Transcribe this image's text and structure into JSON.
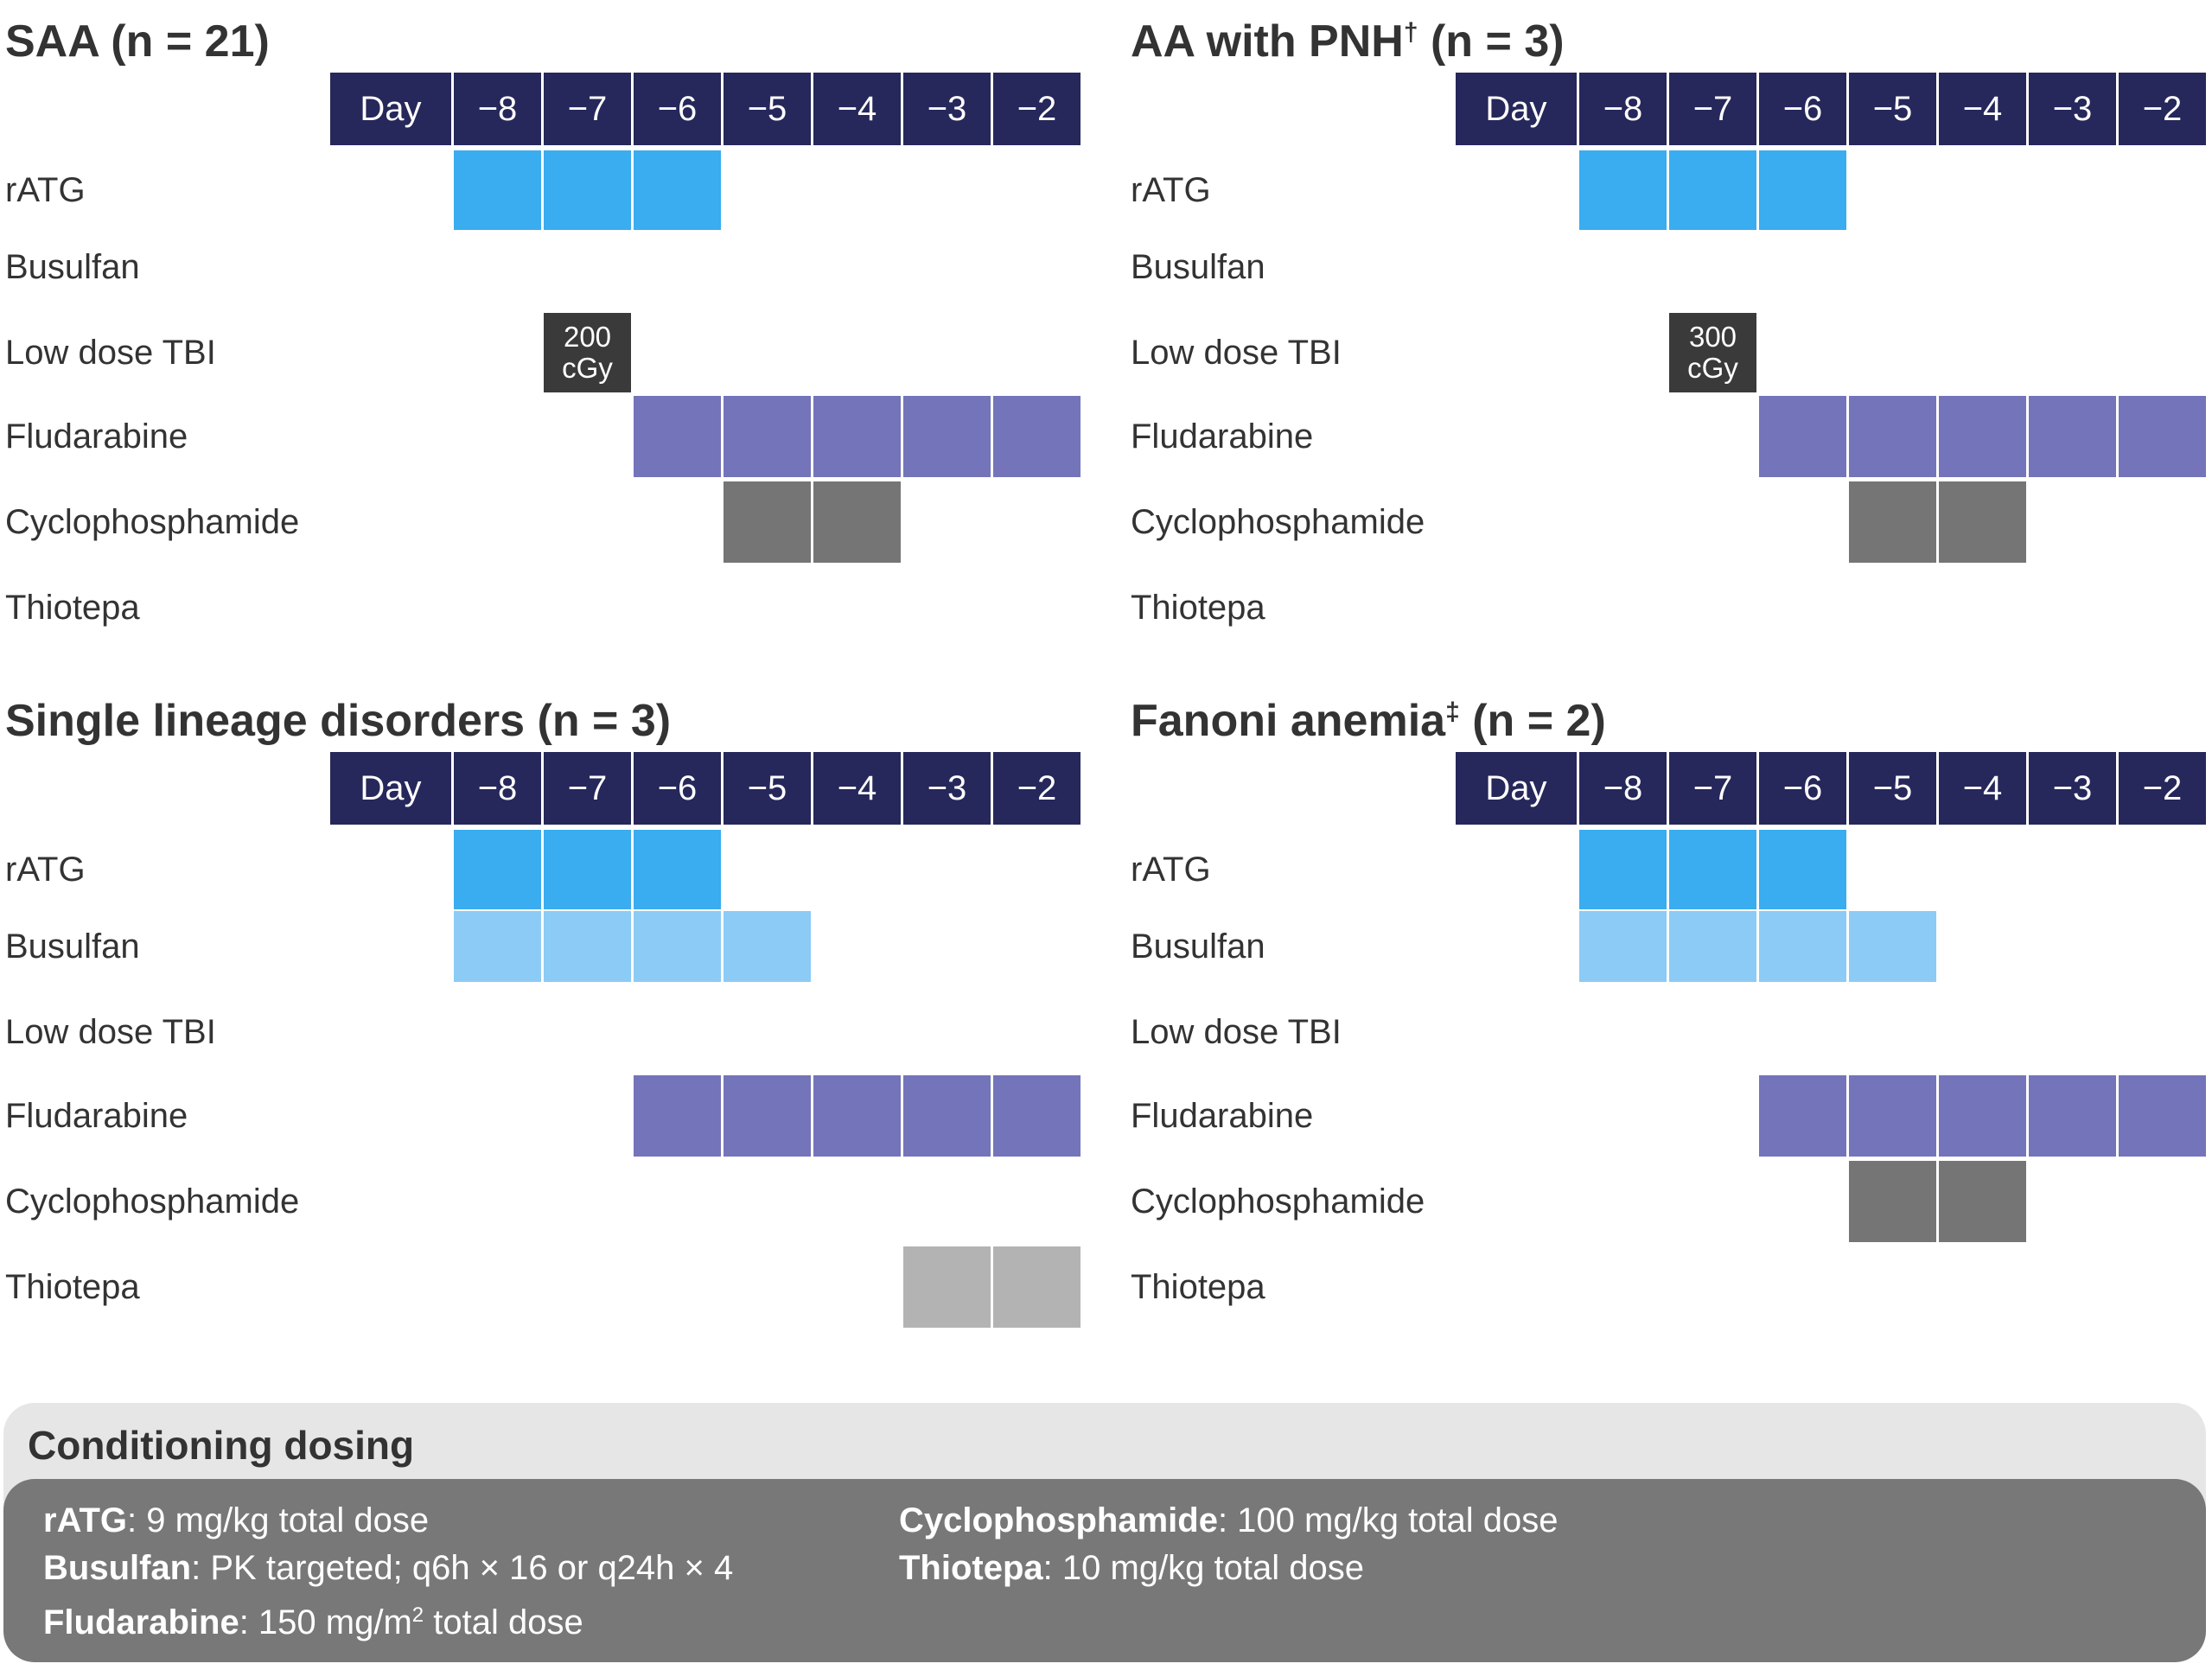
{
  "colors": {
    "header": "#26275a",
    "rATG": "#3aacf0",
    "Busulfan": "#8ccbf5",
    "Low dose TBI": "#3a3a3a",
    "Fludarabine": "#7474bb",
    "Cyclophosphamide": "#757575",
    "Thiotepa": "#b3b3b3"
  },
  "day_label": "Day",
  "days": [
    "−8",
    "−7",
    "−6",
    "−5",
    "−4",
    "−3",
    "−2"
  ],
  "panels": [
    {
      "title": "SAA (n = 21)",
      "title_sup": "",
      "title_suffix": "",
      "rows": [
        {
          "label": "rATG",
          "days": [
            "−8",
            "−7",
            "−6"
          ],
          "text": ""
        },
        {
          "label": "Busulfan",
          "days": [],
          "text": ""
        },
        {
          "label": "Low dose TBI",
          "days": [
            "−7"
          ],
          "text": "200 cGy"
        },
        {
          "label": "Fludarabine",
          "days": [
            "−6",
            "−5",
            "−4",
            "−3",
            "−2"
          ],
          "text": ""
        },
        {
          "label": "Cyclophosphamide",
          "days": [
            "−5",
            "−4"
          ],
          "text": ""
        },
        {
          "label": "Thiotepa",
          "days": [],
          "text": ""
        }
      ]
    },
    {
      "title": "AA with PNH",
      "title_sup": "†",
      "title_suffix": " (n = 3)",
      "rows": [
        {
          "label": "rATG",
          "days": [
            "−8",
            "−7",
            "−6"
          ],
          "text": ""
        },
        {
          "label": "Busulfan",
          "days": [],
          "text": ""
        },
        {
          "label": "Low dose TBI",
          "days": [
            "−7"
          ],
          "text": "300 cGy"
        },
        {
          "label": "Fludarabine",
          "days": [
            "−6",
            "−5",
            "−4",
            "−3",
            "−2"
          ],
          "text": ""
        },
        {
          "label": "Cyclophosphamide",
          "days": [
            "−5",
            "−4"
          ],
          "text": ""
        },
        {
          "label": "Thiotepa",
          "days": [],
          "text": ""
        }
      ]
    },
    {
      "title": "Single lineage disorders (n = 3)",
      "title_sup": "",
      "title_suffix": "",
      "rows": [
        {
          "label": "rATG",
          "days": [
            "−8",
            "−7",
            "−6"
          ],
          "text": ""
        },
        {
          "label": "Busulfan",
          "days": [
            "−8",
            "−7",
            "−6",
            "−5"
          ],
          "text": ""
        },
        {
          "label": "Low dose TBI",
          "days": [],
          "text": ""
        },
        {
          "label": "Fludarabine",
          "days": [
            "−6",
            "−5",
            "−4",
            "−3",
            "−2"
          ],
          "text": ""
        },
        {
          "label": "Cyclophosphamide",
          "days": [],
          "text": ""
        },
        {
          "label": "Thiotepa",
          "days": [
            "−3",
            "−2"
          ],
          "text": ""
        }
      ]
    },
    {
      "title": "Fanoni anemia",
      "title_sup": "‡",
      "title_suffix": " (n = 2)",
      "rows": [
        {
          "label": "rATG",
          "days": [
            "−8",
            "−7",
            "−6"
          ],
          "text": ""
        },
        {
          "label": "Busulfan",
          "days": [
            "−8",
            "−7",
            "−6",
            "−5"
          ],
          "text": ""
        },
        {
          "label": "Low dose TBI",
          "days": [],
          "text": ""
        },
        {
          "label": "Fludarabine",
          "days": [
            "−6",
            "−5",
            "−4",
            "−3",
            "−2"
          ],
          "text": ""
        },
        {
          "label": "Cyclophosphamide",
          "days": [
            "−5",
            "−4"
          ],
          "text": ""
        },
        {
          "label": "Thiotepa",
          "days": [],
          "text": ""
        }
      ]
    }
  ],
  "dosing": {
    "title": "Conditioning dosing",
    "ratg_name": "rATG",
    "ratg_text": ": 9 mg/kg total dose",
    "busulfan_name": "Busulfan",
    "busulfan_text": ": PK targeted; q6h × 16 or q24h × 4",
    "fludarabine_name": "Fludarabine",
    "fludarabine_text": ": 150 mg/m",
    "fludarabine_sup": "2",
    "fludarabine_text2": " total dose",
    "cyclophosphamide_name": "Cyclophosphamide",
    "cyclophosphamide_text": ": 100 mg/kg total dose",
    "thiotepa_name": "Thiotepa",
    "thiotepa_text": ": 10 mg/kg total dose"
  }
}
